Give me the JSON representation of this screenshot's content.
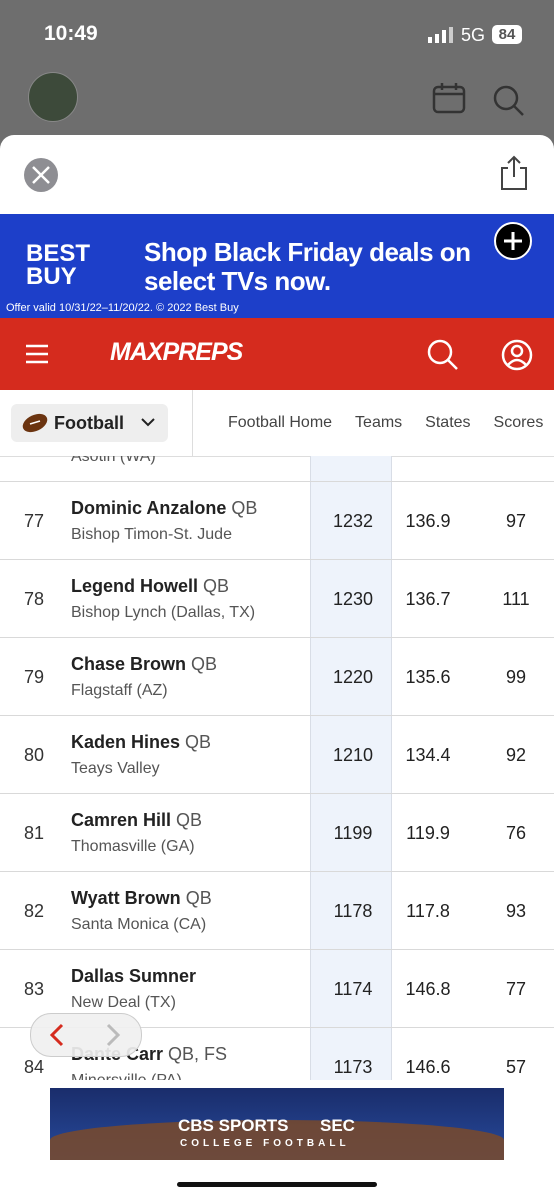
{
  "status": {
    "time": "10:49",
    "network": "5G",
    "battery": "84"
  },
  "ad": {
    "brand": "BEST BUY",
    "headline": "Shop Black Friday deals on select TVs now.",
    "fine_print": "Offer valid 10/31/22–11/20/22. © 2022 Best Buy"
  },
  "nav": {
    "logo": "MAXPREPS"
  },
  "tabs": {
    "sport": "Football",
    "links": [
      "Football Home",
      "Teams",
      "States",
      "Scores"
    ]
  },
  "table": {
    "partial_school": "Asotin (WA)",
    "rows": [
      {
        "rank": 77,
        "name": "Dominic Anzalone",
        "position": "QB",
        "school": "Bishop Timon-St. Jude",
        "stats": [
          1232,
          136.9,
          97
        ]
      },
      {
        "rank": 78,
        "name": "Legend Howell",
        "position": "QB",
        "school": "Bishop Lynch (Dallas, TX)",
        "stats": [
          1230,
          136.7,
          111
        ]
      },
      {
        "rank": 79,
        "name": "Chase Brown",
        "position": "QB",
        "school": "Flagstaff (AZ)",
        "stats": [
          1220,
          135.6,
          99
        ]
      },
      {
        "rank": 80,
        "name": "Kaden Hines",
        "position": "QB",
        "school": "Teays Valley",
        "stats": [
          1210,
          134.4,
          92
        ]
      },
      {
        "rank": 81,
        "name": "Camren Hill",
        "position": "QB",
        "school": "Thomasville (GA)",
        "stats": [
          1199,
          119.9,
          76
        ]
      },
      {
        "rank": 82,
        "name": "Wyatt Brown",
        "position": "QB",
        "school": "Santa Monica (CA)",
        "stats": [
          1178,
          117.8,
          93
        ]
      },
      {
        "rank": 83,
        "name": "Dallas Sumner",
        "position": null,
        "school": "New Deal (TX)",
        "stats": [
          1174,
          146.8,
          77
        ]
      },
      {
        "rank": 84,
        "name": "Dante Carr",
        "position": "QB, FS",
        "school": "Minersville (PA)",
        "stats": [
          1173,
          146.6,
          57
        ]
      }
    ]
  },
  "bottom_ad": {
    "brand": "CBS SPORTS",
    "partner": "SEC",
    "tagline": "COLLEGE FOOTBALL"
  }
}
